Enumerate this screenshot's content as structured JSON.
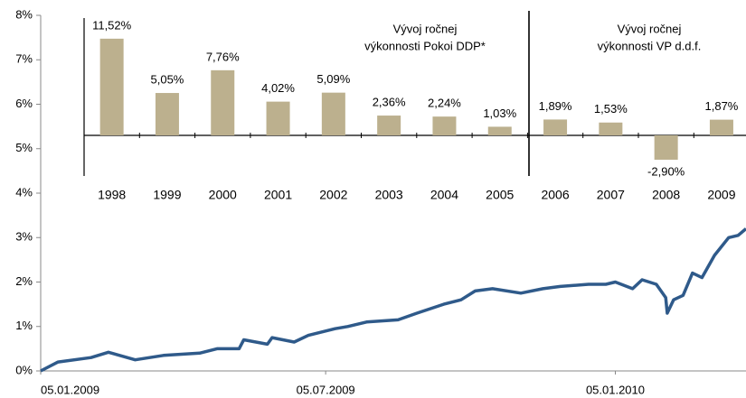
{
  "chart_data": [
    {
      "type": "line",
      "x": [
        "05.01.2009",
        "16.01.2009",
        "06.02.2009",
        "17.02.2009",
        "06.03.2009",
        "24.03.2009",
        "16.04.2009",
        "27.04.2009",
        "11.05.2009",
        "14.05.2009",
        "29.05.2009",
        "01.06.2009",
        "15.06.2009",
        "24.06.2009",
        "11.07.2009",
        "19.07.2009",
        "31.07.2009",
        "20.08.2009",
        "01.09.2009",
        "18.09.2009",
        "29.09.2009",
        "08.10.2009",
        "19.10.2009",
        "06.11.2009",
        "20.11.2009",
        "01.12.2009",
        "19.12.2009",
        "30.12.2009",
        "05.01.2010",
        "16.01.2010",
        "22.01.2010",
        "31.01.2010",
        "06.02.2010",
        "07.02.2010",
        "11.02.2010",
        "17.02.2010",
        "23.02.2010",
        "01.03.2010",
        "09.03.2010",
        "18.03.2010",
        "24.03.2010",
        "29.03.2010"
      ],
      "series": [
        {
          "color": "#2f5a8a",
          "values": [
            0,
            0.2,
            0.3,
            0.42,
            0.25,
            0.35,
            0.4,
            0.5,
            0.5,
            0.7,
            0.6,
            0.75,
            0.65,
            0.8,
            0.95,
            1.0,
            1.1,
            1.15,
            1.3,
            1.5,
            1.6,
            1.8,
            1.85,
            1.75,
            1.85,
            1.9,
            1.95,
            1.95,
            2.0,
            1.85,
            2.05,
            1.95,
            1.65,
            1.3,
            1.6,
            1.7,
            2.2,
            2.1,
            2.6,
            3.0,
            3.05,
            3.2
          ]
        }
      ],
      "xlim": [
        "05.01.2009",
        "29.03.2010"
      ],
      "xticks": [
        "05.01.2009",
        "05.07.2009",
        "05.01.2010"
      ],
      "ylim": [
        0,
        8
      ],
      "yticks": [
        {
          "value": 0,
          "label": "0%"
        },
        {
          "value": 1,
          "label": "1%"
        },
        {
          "value": 2,
          "label": "2%"
        },
        {
          "value": 3,
          "label": "3%"
        },
        {
          "value": 4,
          "label": "4%"
        },
        {
          "value": 5,
          "label": "5%"
        },
        {
          "value": 6,
          "label": "6%"
        },
        {
          "value": 7,
          "label": "7%"
        },
        {
          "value": 8,
          "label": "8%"
        }
      ]
    },
    {
      "type": "bar",
      "categories": [
        "1998",
        "1999",
        "2000",
        "2001",
        "2002",
        "2003",
        "2004",
        "2005",
        "2006",
        "2007",
        "2008",
        "2009"
      ],
      "values": [
        11.52,
        5.05,
        7.76,
        4.02,
        5.09,
        2.36,
        2.24,
        1.03,
        1.89,
        1.53,
        -2.9,
        1.87
      ],
      "value_labels": [
        "11,52%",
        "5,05%",
        "7,76%",
        "4,02%",
        "5,09%",
        "2,36%",
        "2,24%",
        "1,03%",
        "1,89%",
        "1,53%",
        "-2,90%",
        "1,87%"
      ],
      "color": "#bcb08e",
      "annotations": [
        [
          "Vývoj  ročnej",
          "výkonnosti Pokoi DDP*"
        ],
        [
          "Vývoj  ročnej",
          "výkonnosti VP d.d.f."
        ]
      ]
    }
  ]
}
